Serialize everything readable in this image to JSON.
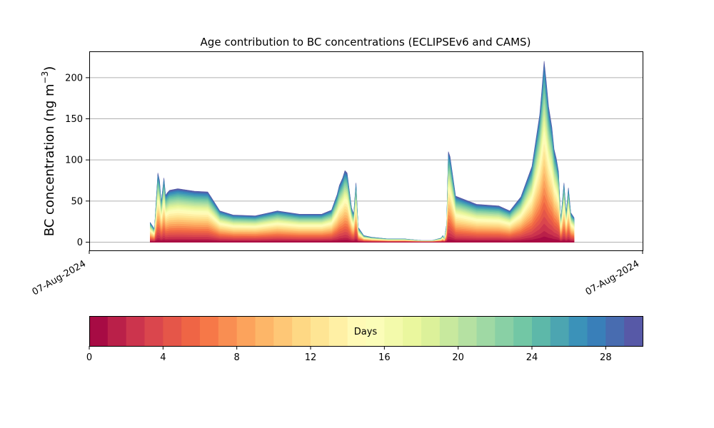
{
  "chart_data": {
    "type": "area",
    "title": "Age contribution to BC concentrations (ECLIPSEv6 and CAMS)",
    "ylabel_main": "BC concentration (ng m",
    "ylabel_sup": "−3",
    "ylabel_close": ")",
    "xlabel": "",
    "ylim": [
      -10,
      232
    ],
    "yticks": [
      0,
      50,
      100,
      150,
      200
    ],
    "grid": "horizontal",
    "x_ticklabels": [
      "07-Aug-2024",
      "07-Aug-2024"
    ],
    "colorbar": {
      "label": "Days",
      "min": 0,
      "max": 30,
      "ticks": [
        0,
        4,
        8,
        12,
        16,
        20,
        24,
        28
      ],
      "colormap": "Spectral",
      "n_bins": 30
    },
    "x": [
      0.0,
      0.4,
      0.7,
      0.85,
      1.0,
      1.25,
      1.4,
      1.55,
      1.75,
      2.5,
      4.0,
      5.2,
      5.5,
      6.3,
      7.5,
      9.5,
      11.5,
      13.5,
      15.5,
      16.4,
      16.9,
      17.1,
      17.4,
      17.6,
      17.8,
      18.2,
      18.4,
      18.6,
      18.8,
      19.0,
      19.3,
      20.0,
      21.5,
      23.0,
      24.5,
      25.0,
      25.5,
      26.0,
      26.3,
      26.45,
      26.6,
      26.8,
      26.95,
      27.1,
      27.6,
      29.5,
      31.5,
      32.5,
      33.5,
      34.5,
      35.2,
      35.4,
      35.6,
      35.8,
      36.0,
      36.3,
      36.5,
      36.7,
      36.9,
      37.1,
      37.4,
      37.6,
      37.8,
      38.0,
      38.3
    ],
    "total": [
      24,
      16,
      84,
      75,
      48,
      78,
      57,
      60,
      63,
      65,
      62,
      61,
      55,
      38,
      33,
      32,
      38,
      34,
      34,
      39,
      58,
      69,
      78,
      87,
      84,
      42,
      34,
      72,
      18,
      14,
      8,
      6,
      4,
      4,
      2,
      2,
      2,
      4,
      5,
      8,
      4,
      22,
      110,
      104,
      56,
      46,
      44,
      38,
      55,
      92,
      155,
      185,
      220,
      195,
      165,
      140,
      113,
      102,
      86,
      26,
      72,
      35,
      66,
      36,
      30
    ],
    "age_fractions": [
      0.0,
      0.03,
      0.06,
      0.1,
      0.14,
      0.18,
      0.22,
      0.26,
      0.3,
      0.34,
      0.38,
      0.42,
      0.46,
      0.5,
      0.54,
      0.58,
      0.61,
      0.64,
      0.67,
      0.7,
      0.73,
      0.76,
      0.79,
      0.82,
      0.85,
      0.88,
      0.91,
      0.94,
      0.96,
      0.98,
      1.0
    ]
  }
}
